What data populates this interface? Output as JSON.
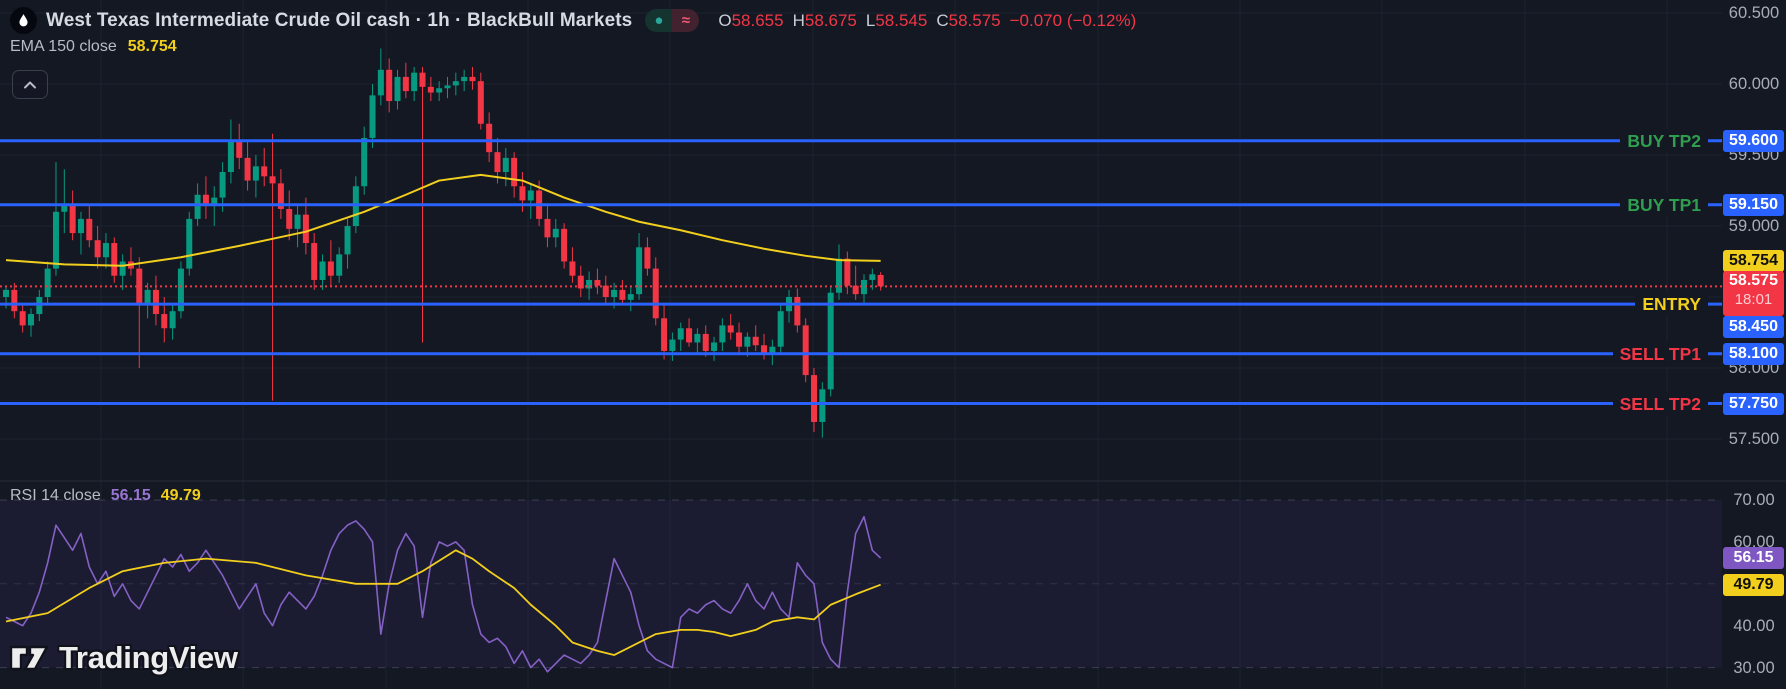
{
  "header": {
    "symbol_title": "West Texas Intermediate Crude Oil cash · 1h · BlackBull Markets",
    "status": {
      "open_dot": "●",
      "delayed": "≈"
    },
    "ohlc": {
      "open_label": "O",
      "open": "58.655",
      "high_label": "H",
      "high": "58.675",
      "low_label": "L",
      "low": "58.545",
      "close_label": "C",
      "close": "58.575",
      "change": "−0.070 (−0.12%)"
    }
  },
  "ema_legend": {
    "label": "EMA 150 close",
    "value": "58.754"
  },
  "rsi_legend": {
    "label": "RSI 14 close",
    "value": "56.15",
    "ma_value": "49.79"
  },
  "watermark": {
    "text": "TradingView"
  },
  "levels": [
    {
      "label": "BUY TP2",
      "kind": "buy",
      "value": 59.6,
      "price_text": "59.600"
    },
    {
      "label": "BUY TP1",
      "kind": "buy",
      "value": 59.15,
      "price_text": "59.150"
    },
    {
      "label": "ENTRY",
      "kind": "entry",
      "value": 58.45,
      "price_text": "58.450"
    },
    {
      "label": "SELL TP1",
      "kind": "sell",
      "value": 58.1,
      "price_text": "58.100"
    },
    {
      "label": "SELL TP2",
      "kind": "sell",
      "value": 57.75,
      "price_text": "57.750"
    }
  ],
  "price_scale": {
    "ticks": [
      {
        "text": "60.500",
        "value": 60.5
      },
      {
        "text": "60.000",
        "value": 60.0
      },
      {
        "text": "59.500",
        "value": 59.5
      },
      {
        "text": "59.000",
        "value": 59.0
      },
      {
        "text": "58.000",
        "value": 58.0
      },
      {
        "text": "57.500",
        "value": 57.5
      }
    ],
    "ema_badge": {
      "text": "58.754",
      "value": 58.754
    },
    "last_badge": {
      "text": "58.575",
      "value": 58.575,
      "countdown": "18:01"
    }
  },
  "rsi_scale": {
    "ticks": [
      {
        "text": "70.00",
        "value": 70
      },
      {
        "text": "60.00",
        "value": 60
      },
      {
        "text": "40.00",
        "value": 40
      },
      {
        "text": "30.00",
        "value": 30
      }
    ],
    "rsi_badge": {
      "text": "56.15",
      "value": 56.15
    },
    "ma_badge": {
      "text": "49.79",
      "value": 49.79
    }
  },
  "colors": {
    "bg": "#141823",
    "grid": "#1c2230",
    "separator": "#272c3a",
    "up": "#089981",
    "down": "#f23645",
    "ema": "#f2cf1d",
    "level_line": "#2962ff",
    "buy_text": "#2f9e4f",
    "sell_text": "#f23645",
    "entry_text": "#f2cf1d",
    "rsi_line": "#8561c5",
    "rsi_ma_line": "#f2cf1d",
    "rsi_band": "rgba(126,87,255,0.07)",
    "rsi_grid": "rgba(170,174,186,0.45)",
    "badge_blue": "#2962ff",
    "badge_yellow": "#f2cf1d",
    "badge_red": "#f23645",
    "badge_purple": "#7e57c2",
    "axis_text": "#a8adb8"
  },
  "chart_data": {
    "type": "candlestick",
    "title": "West Texas Intermediate Crude Oil cash",
    "timeframe": "1h",
    "exchange": "BlackBull Markets",
    "visible_price_range": [
      57.35,
      60.55
    ],
    "price_gridlines": [
      60.5,
      60.0,
      59.5,
      59.0,
      58.5,
      58.0,
      57.5
    ],
    "candles": [
      [
        58.5,
        58.58,
        58.42,
        58.55
      ],
      [
        58.55,
        58.6,
        58.35,
        58.4
      ],
      [
        58.4,
        58.45,
        58.25,
        58.3
      ],
      [
        58.3,
        58.42,
        58.22,
        58.38
      ],
      [
        58.38,
        58.55,
        58.33,
        58.5
      ],
      [
        58.5,
        58.75,
        58.45,
        58.7
      ],
      [
        58.7,
        59.45,
        58.65,
        59.1
      ],
      [
        59.1,
        59.4,
        58.95,
        59.15
      ],
      [
        59.15,
        59.25,
        58.9,
        58.95
      ],
      [
        58.95,
        59.1,
        58.8,
        59.05
      ],
      [
        59.05,
        59.15,
        58.85,
        58.9
      ],
      [
        58.9,
        59.0,
        58.7,
        58.78
      ],
      [
        58.78,
        58.95,
        58.7,
        58.88
      ],
      [
        58.88,
        58.92,
        58.6,
        58.65
      ],
      [
        58.65,
        58.8,
        58.55,
        58.75
      ],
      [
        58.75,
        58.85,
        58.65,
        58.7
      ],
      [
        58.7,
        58.78,
        58.0,
        58.45
      ],
      [
        58.45,
        58.6,
        58.35,
        58.55
      ],
      [
        58.55,
        58.65,
        58.3,
        58.38
      ],
      [
        58.38,
        58.5,
        58.18,
        58.28
      ],
      [
        58.28,
        58.45,
        58.2,
        58.4
      ],
      [
        58.4,
        58.75,
        58.35,
        58.7
      ],
      [
        58.7,
        59.1,
        58.65,
        59.05
      ],
      [
        59.05,
        59.3,
        59.0,
        59.22
      ],
      [
        59.22,
        59.35,
        59.05,
        59.15
      ],
      [
        59.15,
        59.28,
        59.0,
        59.2
      ],
      [
        59.2,
        59.45,
        59.1,
        59.38
      ],
      [
        59.38,
        59.75,
        59.3,
        59.6
      ],
      [
        59.6,
        59.72,
        59.4,
        59.48
      ],
      [
        59.48,
        59.6,
        59.25,
        59.32
      ],
      [
        59.32,
        59.5,
        59.2,
        59.42
      ],
      [
        59.42,
        59.55,
        59.28,
        59.35
      ],
      [
        59.35,
        59.65,
        57.77,
        59.3
      ],
      [
        59.3,
        59.4,
        59.05,
        59.12
      ],
      [
        59.12,
        59.25,
        58.9,
        58.98
      ],
      [
        58.98,
        59.15,
        58.85,
        59.08
      ],
      [
        59.08,
        59.2,
        58.8,
        58.88
      ],
      [
        58.88,
        58.95,
        58.55,
        58.62
      ],
      [
        58.62,
        58.8,
        58.55,
        58.75
      ],
      [
        58.75,
        58.9,
        58.58,
        58.65
      ],
      [
        58.65,
        58.85,
        58.6,
        58.8
      ],
      [
        58.8,
        59.05,
        58.7,
        59.0
      ],
      [
        59.0,
        59.35,
        58.95,
        59.28
      ],
      [
        59.28,
        59.7,
        59.22,
        59.62
      ],
      [
        59.62,
        60.0,
        59.55,
        59.92
      ],
      [
        59.92,
        60.25,
        59.85,
        60.1
      ],
      [
        60.1,
        60.18,
        59.8,
        59.88
      ],
      [
        59.88,
        60.1,
        59.82,
        60.05
      ],
      [
        60.05,
        60.15,
        59.9,
        59.95
      ],
      [
        59.95,
        60.12,
        59.88,
        60.08
      ],
      [
        60.08,
        60.12,
        58.18,
        59.98
      ],
      [
        59.98,
        60.05,
        59.88,
        59.94
      ],
      [
        59.94,
        60.02,
        59.88,
        59.97
      ],
      [
        59.97,
        60.05,
        59.9,
        59.99
      ],
      [
        59.99,
        60.08,
        59.92,
        60.02
      ],
      [
        60.02,
        60.1,
        59.95,
        60.05
      ],
      [
        60.05,
        60.12,
        59.96,
        60.02
      ],
      [
        60.02,
        60.08,
        59.68,
        59.72
      ],
      [
        59.72,
        59.8,
        59.45,
        59.52
      ],
      [
        59.52,
        59.62,
        59.3,
        59.38
      ],
      [
        59.38,
        59.55,
        59.28,
        59.48
      ],
      [
        59.48,
        59.52,
        59.2,
        59.28
      ],
      [
        59.28,
        59.38,
        59.1,
        59.18
      ],
      [
        59.18,
        59.3,
        59.05,
        59.25
      ],
      [
        59.25,
        59.32,
        59.0,
        59.05
      ],
      [
        59.05,
        59.15,
        58.85,
        58.92
      ],
      [
        58.92,
        59.05,
        58.85,
        58.98
      ],
      [
        58.98,
        59.02,
        58.7,
        58.75
      ],
      [
        58.75,
        58.85,
        58.6,
        58.65
      ],
      [
        58.65,
        58.72,
        58.5,
        58.56
      ],
      [
        58.56,
        58.68,
        58.48,
        58.62
      ],
      [
        58.62,
        58.7,
        58.52,
        58.58
      ],
      [
        58.58,
        58.65,
        58.45,
        58.5
      ],
      [
        58.5,
        58.6,
        58.42,
        58.55
      ],
      [
        58.55,
        58.62,
        58.45,
        58.48
      ],
      [
        58.48,
        58.58,
        58.4,
        58.52
      ],
      [
        58.52,
        58.95,
        58.48,
        58.85
      ],
      [
        58.85,
        58.92,
        58.65,
        58.7
      ],
      [
        58.7,
        58.78,
        58.3,
        58.35
      ],
      [
        58.35,
        58.45,
        58.06,
        58.12
      ],
      [
        58.12,
        58.25,
        58.05,
        58.2
      ],
      [
        58.2,
        58.32,
        58.12,
        58.28
      ],
      [
        58.28,
        58.35,
        58.15,
        58.18
      ],
      [
        58.18,
        58.28,
        58.1,
        58.24
      ],
      [
        58.24,
        58.3,
        58.08,
        58.12
      ],
      [
        58.12,
        58.22,
        58.05,
        58.18
      ],
      [
        58.18,
        58.35,
        58.12,
        58.3
      ],
      [
        58.3,
        58.38,
        58.2,
        58.25
      ],
      [
        58.25,
        58.32,
        58.1,
        58.15
      ],
      [
        58.15,
        58.25,
        58.08,
        58.22
      ],
      [
        58.22,
        58.3,
        58.12,
        58.16
      ],
      [
        58.16,
        58.24,
        58.06,
        58.1
      ],
      [
        58.1,
        58.2,
        58.02,
        58.15
      ],
      [
        58.15,
        58.45,
        58.1,
        58.4
      ],
      [
        58.4,
        58.55,
        58.32,
        58.5
      ],
      [
        58.5,
        58.56,
        58.25,
        58.3
      ],
      [
        58.3,
        58.35,
        57.9,
        57.95
      ],
      [
        57.95,
        58.0,
        57.55,
        57.62
      ],
      [
        57.62,
        57.9,
        57.51,
        57.85
      ],
      [
        57.85,
        58.58,
        57.8,
        58.53
      ],
      [
        58.53,
        58.87,
        58.48,
        58.77
      ],
      [
        58.77,
        58.82,
        58.52,
        58.58
      ],
      [
        58.58,
        58.72,
        58.48,
        58.52
      ],
      [
        58.52,
        58.66,
        58.46,
        58.62
      ],
      [
        58.62,
        58.7,
        58.55,
        58.66
      ],
      [
        58.655,
        58.675,
        58.545,
        58.575
      ]
    ],
    "overlays": {
      "ema150_waypoints": [
        [
          0,
          58.76
        ],
        [
          7,
          58.73
        ],
        [
          14,
          58.72
        ],
        [
          21,
          58.78
        ],
        [
          28,
          58.86
        ],
        [
          36,
          58.96
        ],
        [
          43,
          59.1
        ],
        [
          48,
          59.22
        ],
        [
          52,
          59.32
        ],
        [
          57,
          59.36
        ],
        [
          62,
          59.32
        ],
        [
          67,
          59.2
        ],
        [
          72,
          59.1
        ],
        [
          76,
          59.03
        ],
        [
          81,
          58.97
        ],
        [
          86,
          58.9
        ],
        [
          91,
          58.84
        ],
        [
          96,
          58.79
        ],
        [
          100,
          58.76
        ],
        [
          105,
          58.754
        ]
      ]
    },
    "indicator": {
      "name": "RSI 14",
      "bands": [
        70,
        50,
        30
      ],
      "visible_range": [
        25,
        75
      ],
      "values": [
        42,
        41,
        40,
        43,
        48,
        55,
        64,
        61,
        58,
        62,
        54,
        50,
        53,
        47,
        50,
        46,
        44,
        48,
        52,
        56,
        54,
        57,
        53,
        55,
        58,
        55,
        52,
        48,
        44,
        47,
        50,
        43,
        40,
        45,
        48,
        46,
        44,
        47,
        52,
        58,
        62,
        64,
        65,
        63,
        60,
        38,
        50,
        58,
        62,
        59,
        42,
        55,
        60,
        59,
        60,
        58,
        45,
        38,
        36,
        37,
        35,
        31,
        34,
        30,
        32,
        29,
        31,
        33,
        32,
        31,
        33,
        36,
        46,
        56,
        52,
        48,
        40,
        34,
        32,
        31,
        30,
        42,
        44,
        43,
        45,
        46,
        44,
        43,
        46,
        50,
        46,
        44,
        48,
        44,
        42,
        55,
        52,
        50,
        36,
        32,
        30,
        48,
        62,
        66,
        58,
        56.15
      ],
      "ma_waypoints": [
        [
          0,
          41
        ],
        [
          5,
          43
        ],
        [
          10,
          49
        ],
        [
          14,
          53
        ],
        [
          19,
          55
        ],
        [
          24,
          56
        ],
        [
          30,
          55
        ],
        [
          36,
          52
        ],
        [
          42,
          50
        ],
        [
          47,
          50
        ],
        [
          50,
          53
        ],
        [
          54,
          58
        ],
        [
          56,
          56
        ],
        [
          58,
          53
        ],
        [
          61,
          49
        ],
        [
          63,
          45
        ],
        [
          66,
          40
        ],
        [
          68,
          36
        ],
        [
          71,
          34
        ],
        [
          73,
          33
        ],
        [
          75,
          35
        ],
        [
          78,
          38
        ],
        [
          81,
          39
        ],
        [
          83,
          39
        ],
        [
          85,
          38.5
        ],
        [
          87,
          37.5
        ],
        [
          90,
          39
        ],
        [
          92,
          41
        ],
        [
          95,
          42
        ],
        [
          97,
          41.5
        ],
        [
          99,
          45
        ],
        [
          102,
          47.5
        ],
        [
          105,
          49.79
        ]
      ]
    }
  }
}
